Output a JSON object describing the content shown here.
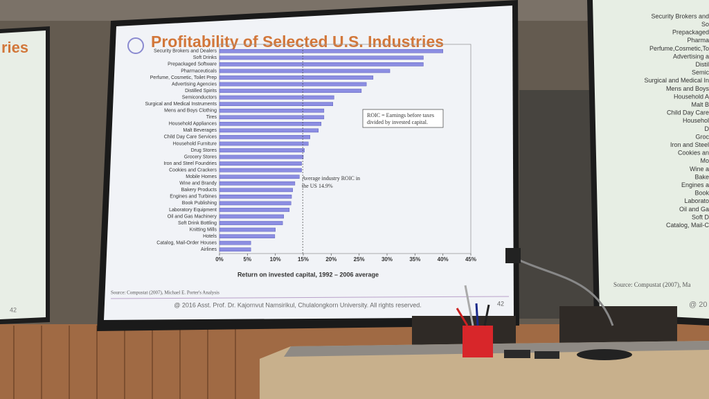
{
  "chart_data": {
    "type": "bar",
    "orientation": "horizontal",
    "title": "Profitability of Selected U.S. Industries",
    "x_label": "Return on invested capital, 1992 – 2006 average",
    "categories": [
      "Security Brokers and Dealers",
      "Soft Drinks",
      "Prepackaged Software",
      "Pharmaceuticals",
      "Perfume, Cosmetic, Toilet Prep",
      "Advertising Agencies",
      "Distilled Spirits",
      "Semiconductors",
      "Surgical and Medical Instruments",
      "Mens and Boys Clothing",
      "Tires",
      "Household Appliances",
      "Malt Beverages",
      "Child Day Care Services",
      "Household Furniture",
      "Drug Stores",
      "Grocery Stores",
      "Iron and Steel Foundries",
      "Cookies and Crackers",
      "Mobile Homes",
      "Wine and Brandy",
      "Bakery Products",
      "Engines and Turbines",
      "Book Publishing",
      "Laboratory Equipment",
      "Oil and Gas Machinery",
      "Soft Drink Bottling",
      "Knitting Mills",
      "Hotels",
      "Catalog, Mail-Order Houses",
      "Airlines"
    ],
    "values": [
      40,
      36.5,
      36.5,
      30.5,
      27.5,
      26.3,
      25.4,
      20.5,
      20.3,
      18.7,
      18.7,
      18.2,
      17.7,
      16.2,
      15.9,
      15.2,
      15.0,
      14.7,
      14.7,
      14.3,
      13.5,
      13.1,
      12.9,
      12.8,
      12.5,
      11.5,
      11.3,
      10.0,
      9.9,
      5.6,
      5.6
    ],
    "color": "#8c8ee2",
    "xlim": [
      0,
      45
    ],
    "xticks": [
      {
        "value": 0,
        "label": "0%"
      },
      {
        "value": 5,
        "label": "5%"
      },
      {
        "value": 10,
        "label": "10%"
      },
      {
        "value": 15,
        "label": "15%"
      },
      {
        "value": 20,
        "label": "20%"
      },
      {
        "value": 25,
        "label": "25%"
      },
      {
        "value": 30,
        "label": "30%"
      },
      {
        "value": 35,
        "label": "35%"
      },
      {
        "value": 40,
        "label": "40%"
      },
      {
        "value": 45,
        "label": "45%"
      }
    ],
    "reference_line": 14.9,
    "annotations": {
      "average": "Average industry ROIC in the US 14.9%",
      "definition": "ROIC = Earnings before taxes divided by invested capital."
    },
    "source": "Source: Compustat (2007), Michael E. Porter's Analysis"
  },
  "slide": {
    "footer": "@ 2016 Asst. Prof. Dr. Kajornvut Namsirikul, Chulalongkorn University. All rights reserved.",
    "page_number": "42"
  },
  "left_screen": {
    "title_fragment": "ries",
    "page_number": "42"
  },
  "right_screen": {
    "labels": [
      "Security Brokers and",
      "So",
      "Prepackaged",
      "Pharma",
      "Perfume,Cosmetic,To",
      "Advertising a",
      "Distil",
      "Semic",
      "Surgical and Medical In",
      "Mens and Boys",
      "Household A",
      "Malt B",
      "Child Day Care",
      "Househol",
      "D",
      "Groc",
      "Iron and Steel",
      "Cookies an",
      "Mo",
      "Wine a",
      "Bake",
      "Engines a",
      "Book",
      "Laborato",
      "Oil and Ga",
      "Soft D",
      "Catalog, Mail-C"
    ],
    "source": "Source: Compustat (2007), Ma",
    "footer_fragment": "@ 20"
  }
}
